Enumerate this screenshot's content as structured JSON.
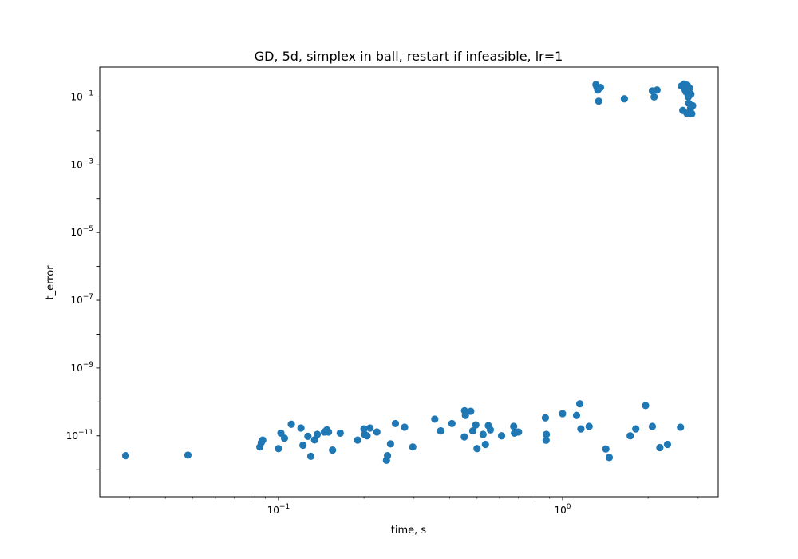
{
  "chart_data": {
    "type": "scatter",
    "title": "GD, 5d, simplex in ball, restart if infeasible, lr=1",
    "xlabel": "time, s",
    "ylabel": "t_error",
    "xscale": "log",
    "yscale": "log",
    "xlim": [
      0.0235,
      3.53
    ],
    "ylim": [
      1.6e-13,
      0.76
    ],
    "grid": false,
    "marker_color": "#1f77b4",
    "x_ticks": [
      {
        "value": 0.1,
        "base": "10",
        "exp": "−1"
      },
      {
        "value": 1,
        "base": "10",
        "exp": "0"
      }
    ],
    "y_ticks": [
      {
        "value": 1e-11,
        "base": "10",
        "exp": "−11"
      },
      {
        "value": 1e-09,
        "base": "10",
        "exp": "−9"
      },
      {
        "value": 1e-07,
        "base": "10",
        "exp": "−7"
      },
      {
        "value": 1e-05,
        "base": "10",
        "exp": "−5"
      },
      {
        "value": 0.001,
        "base": "10",
        "exp": "−3"
      },
      {
        "value": 0.1,
        "base": "10",
        "exp": "−1"
      }
    ],
    "series": [
      {
        "x": [
          0.029,
          0.048,
          0.086,
          0.087,
          0.088,
          0.1,
          0.102,
          0.105,
          0.111,
          0.12,
          0.122,
          0.127,
          0.13,
          0.134,
          0.137,
          0.145,
          0.148,
          0.15,
          0.155,
          0.165,
          0.19,
          0.2,
          0.201,
          0.205,
          0.21,
          0.222,
          0.24,
          0.242,
          0.248,
          0.258,
          0.278,
          0.297,
          0.355,
          0.372,
          0.373,
          0.408,
          0.451,
          0.452,
          0.455,
          0.475,
          0.483,
          0.495,
          0.5,
          0.525,
          0.535,
          0.548,
          0.557,
          0.61,
          0.673,
          0.677,
          0.7,
          0.87,
          0.875,
          0.877,
          1.0,
          1.12,
          1.15,
          1.16,
          1.24,
          1.42,
          1.46,
          1.73,
          1.81,
          1.96,
          2.07,
          2.2,
          2.34,
          2.6,
          1.31,
          1.32,
          1.33,
          1.34,
          1.36,
          1.65,
          2.07,
          2.1,
          2.15,
          2.62,
          2.65,
          2.68,
          2.7,
          2.72,
          2.74,
          2.75,
          2.77,
          2.78,
          2.8,
          2.82,
          2.83,
          2.85,
          2.87
        ],
        "y": [
          2.6e-12,
          2.7e-12,
          4.7e-12,
          6.3e-12,
          7.5e-12,
          4.2e-12,
          1.2e-11,
          8.5e-12,
          2.2e-11,
          1.7e-11,
          5.3e-12,
          9.7e-12,
          2.5e-12,
          7.6e-12,
          1.1e-11,
          1.3e-11,
          1.5e-11,
          1.3e-11,
          3.8e-12,
          1.2e-11,
          7.5e-12,
          1.6e-11,
          1.1e-11,
          1e-11,
          1.7e-11,
          1.3e-11,
          1.9e-12,
          2.6e-12,
          5.8e-12,
          2.3e-11,
          1.8e-11,
          4.7e-12,
          3.1e-11,
          1.4e-11,
          1.4e-11,
          2.3e-11,
          9.3e-12,
          5.5e-11,
          4e-11,
          5.3e-11,
          1.4e-11,
          2.1e-11,
          4.2e-12,
          1.1e-11,
          5.6e-12,
          2e-11,
          1.5e-11,
          1e-11,
          1.9e-11,
          1.2e-11,
          1.3e-11,
          3.4e-11,
          7.4e-12,
          1.1e-11,
          4.5e-11,
          4e-11,
          8.8e-11,
          1.6e-11,
          1.9e-11,
          4.1e-12,
          2.3e-12,
          1e-11,
          1.6e-11,
          7.8e-11,
          1.9e-11,
          4.5e-12,
          5.6e-12,
          1.8e-11,
          0.23,
          0.2,
          0.16,
          0.075,
          0.19,
          0.088,
          0.15,
          0.1,
          0.16,
          0.21,
          0.04,
          0.24,
          0.16,
          0.14,
          0.033,
          0.22,
          0.1,
          0.065,
          0.18,
          0.045,
          0.12,
          0.032,
          0.055
        ]
      }
    ]
  }
}
